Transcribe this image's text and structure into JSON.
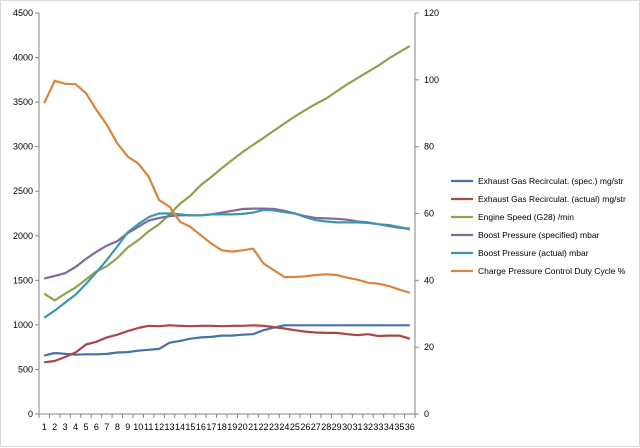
{
  "chart_data": {
    "type": "line",
    "title": "",
    "xlabel": "",
    "ylabel": "",
    "y2label": "",
    "ylim": [
      0,
      4500
    ],
    "y2lim": [
      0,
      120
    ],
    "y_ticks": [
      0,
      500,
      1000,
      1500,
      2000,
      2500,
      3000,
      3500,
      4000,
      4500
    ],
    "y2_ticks": [
      0,
      20,
      40,
      60,
      80,
      100,
      120
    ],
    "categories": [
      "1",
      "2",
      "3",
      "4",
      "5",
      "6",
      "7",
      "8",
      "9",
      "10",
      "11",
      "12",
      "13",
      "14",
      "15",
      "16",
      "17",
      "18",
      "19",
      "20",
      "21",
      "22",
      "23",
      "24",
      "25",
      "26",
      "27",
      "28",
      "29",
      "30",
      "31",
      "32",
      "33",
      "34",
      "35",
      "36"
    ],
    "grid": false,
    "legend_position": "right",
    "series": [
      {
        "name": "Exhaust Gas Recirculat. (spec.)  mg/str",
        "axis": "left",
        "color": "#4572a7",
        "values": [
          655,
          685,
          675,
          665,
          670,
          670,
          675,
          690,
          695,
          710,
          720,
          730,
          800,
          820,
          845,
          860,
          865,
          880,
          880,
          890,
          895,
          940,
          970,
          995,
          995,
          995,
          995,
          995,
          995,
          995,
          995,
          995,
          995,
          995,
          995,
          995
        ]
      },
      {
        "name": "Exhaust Gas Recirculat. (actual)  mg/str",
        "axis": "left",
        "color": "#aa4643",
        "values": [
          580,
          595,
          640,
          690,
          780,
          810,
          860,
          890,
          930,
          965,
          990,
          985,
          995,
          990,
          985,
          990,
          990,
          985,
          990,
          990,
          995,
          990,
          975,
          960,
          940,
          925,
          915,
          910,
          910,
          895,
          885,
          895,
          875,
          880,
          880,
          845
        ]
      },
      {
        "name": "Engine Speed (G28)  /min",
        "axis": "left",
        "color": "#89a54e",
        "values": [
          1350,
          1275,
          1350,
          1420,
          1510,
          1600,
          1660,
          1750,
          1870,
          1950,
          2050,
          2130,
          2240,
          2360,
          2450,
          2570,
          2660,
          2760,
          2850,
          2940,
          3020,
          3100,
          3180,
          3260,
          3340,
          3410,
          3480,
          3540,
          3620,
          3700,
          3770,
          3840,
          3910,
          3990,
          4060,
          4130
        ]
      },
      {
        "name": "Boost Pressure (specified)  mbar",
        "axis": "left",
        "color": "#80699b",
        "values": [
          1520,
          1550,
          1580,
          1650,
          1740,
          1820,
          1890,
          1940,
          2030,
          2100,
          2170,
          2200,
          2220,
          2230,
          2230,
          2230,
          2240,
          2260,
          2280,
          2300,
          2305,
          2305,
          2300,
          2280,
          2250,
          2220,
          2200,
          2195,
          2190,
          2180,
          2160,
          2150,
          2130,
          2110,
          2090,
          2080
        ]
      },
      {
        "name": "Boost Pressure (actual)  mbar",
        "axis": "left",
        "color": "#3d96ae",
        "values": [
          1080,
          1160,
          1250,
          1340,
          1460,
          1590,
          1730,
          1880,
          2040,
          2130,
          2210,
          2250,
          2250,
          2240,
          2230,
          2230,
          2240,
          2240,
          2240,
          2245,
          2260,
          2290,
          2285,
          2265,
          2250,
          2210,
          2175,
          2160,
          2150,
          2150,
          2150,
          2145,
          2130,
          2120,
          2100,
          2070
        ]
      },
      {
        "name": "Charge Pressure Control Duty Cycle  %",
        "axis": "right",
        "color": "#db843d",
        "values": [
          93,
          99.7,
          98.8,
          98.7,
          96,
          91,
          86.5,
          81,
          77,
          75,
          71,
          64,
          62,
          57.5,
          56,
          53.5,
          51,
          49,
          48.6,
          49,
          49.5,
          45,
          43,
          41,
          41,
          41.2,
          41.6,
          41.8,
          41.6,
          40.8,
          40.2,
          39.3,
          39,
          38.3,
          37.2,
          36.3
        ]
      }
    ]
  }
}
